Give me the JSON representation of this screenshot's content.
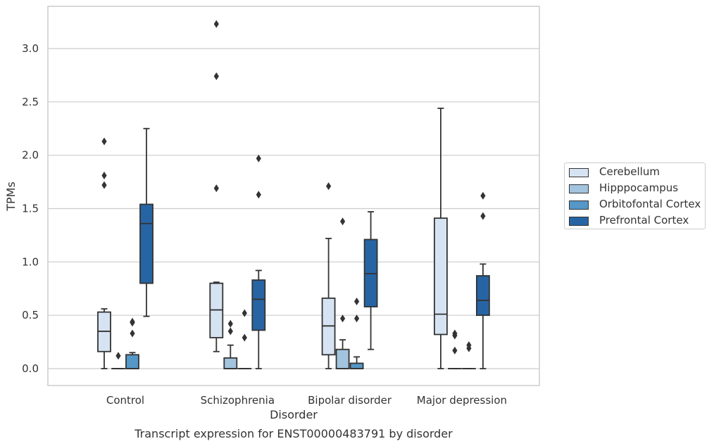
{
  "chart_data": {
    "type": "box",
    "title": "Transcript expression for ENST00000483791 by disorder",
    "xlabel": "Disorder",
    "ylabel": "TPMs",
    "ylim": [
      -0.15,
      3.4
    ],
    "yticks": [
      "0.0",
      "0.5",
      "1.0",
      "1.5",
      "2.0",
      "2.5",
      "3.0"
    ],
    "grid": "horizontal",
    "legend_position": "right",
    "categories": [
      "Control",
      "Schizophrenia",
      "Bipolar disorder",
      "Major depression"
    ],
    "series": [
      {
        "name": "Cerebellum",
        "color": "#d6e3f2",
        "boxes": [
          {
            "whisker_low": 0.0,
            "q1": 0.16,
            "median": 0.35,
            "q3": 0.53,
            "whisker_high": 0.56,
            "outliers": [
              1.72,
              1.81,
              2.13
            ]
          },
          {
            "whisker_low": 0.16,
            "q1": 0.29,
            "median": 0.55,
            "q3": 0.8,
            "whisker_high": 0.81,
            "outliers": [
              1.69,
              2.74,
              3.23
            ]
          },
          {
            "whisker_low": 0.0,
            "q1": 0.13,
            "median": 0.4,
            "q3": 0.66,
            "whisker_high": 1.22,
            "outliers": [
              1.71
            ]
          },
          {
            "whisker_low": 0.0,
            "q1": 0.32,
            "median": 0.51,
            "q3": 1.41,
            "whisker_high": 2.44,
            "outliers": []
          }
        ]
      },
      {
        "name": "Hipppocampus",
        "color": "#a3c4de",
        "boxes": [
          {
            "whisker_low": 0.0,
            "q1": 0.0,
            "median": 0.0,
            "q3": 0.0,
            "whisker_high": 0.0,
            "outliers": [
              0.12
            ]
          },
          {
            "whisker_low": 0.0,
            "q1": 0.0,
            "median": 0.0,
            "q3": 0.1,
            "whisker_high": 0.22,
            "outliers": [
              0.35,
              0.42
            ]
          },
          {
            "whisker_low": 0.0,
            "q1": 0.0,
            "median": 0.0,
            "q3": 0.18,
            "whisker_high": 0.27,
            "outliers": [
              0.47,
              1.38
            ]
          },
          {
            "whisker_low": 0.0,
            "q1": 0.0,
            "median": 0.0,
            "q3": 0.0,
            "whisker_high": 0.0,
            "outliers": [
              0.17,
              0.31,
              0.33
            ]
          }
        ]
      },
      {
        "name": "Orbitofontal Cortex",
        "color": "#5597c6",
        "boxes": [
          {
            "whisker_low": 0.0,
            "q1": 0.0,
            "median": 0.0,
            "q3": 0.13,
            "whisker_high": 0.15,
            "outliers": [
              0.33,
              0.43,
              0.44
            ]
          },
          {
            "whisker_low": 0.0,
            "q1": 0.0,
            "median": 0.0,
            "q3": 0.0,
            "whisker_high": 0.0,
            "outliers": [
              0.29,
              0.52
            ]
          },
          {
            "whisker_low": 0.0,
            "q1": 0.0,
            "median": 0.0,
            "q3": 0.05,
            "whisker_high": 0.11,
            "outliers": [
              0.47,
              0.63
            ]
          },
          {
            "whisker_low": 0.0,
            "q1": 0.0,
            "median": 0.0,
            "q3": 0.0,
            "whisker_high": 0.0,
            "outliers": [
              0.19,
              0.22
            ]
          }
        ]
      },
      {
        "name": "Prefrontal Cortex",
        "color": "#2764a3",
        "boxes": [
          {
            "whisker_low": 0.49,
            "q1": 0.8,
            "median": 1.36,
            "q3": 1.54,
            "whisker_high": 2.25,
            "outliers": []
          },
          {
            "whisker_low": 0.0,
            "q1": 0.36,
            "median": 0.65,
            "q3": 0.83,
            "whisker_high": 0.92,
            "outliers": [
              1.63,
              1.97
            ]
          },
          {
            "whisker_low": 0.18,
            "q1": 0.58,
            "median": 0.89,
            "q3": 1.21,
            "whisker_high": 1.47,
            "outliers": []
          },
          {
            "whisker_low": 0.0,
            "q1": 0.5,
            "median": 0.64,
            "q3": 0.87,
            "whisker_high": 0.98,
            "outliers": [
              1.43,
              1.62
            ]
          }
        ]
      }
    ]
  }
}
